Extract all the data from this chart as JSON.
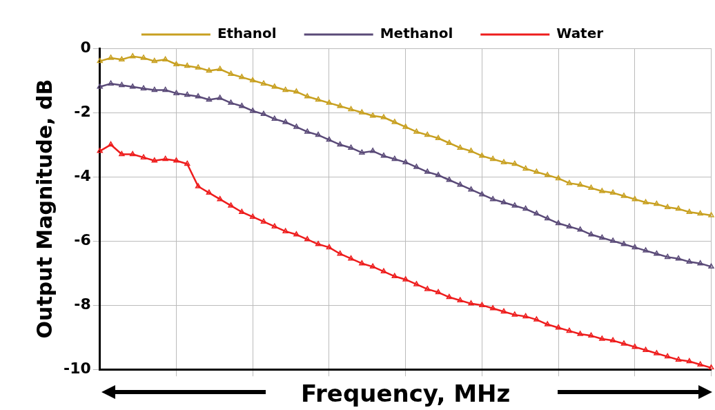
{
  "chart_data": {
    "type": "line",
    "xlabel": "Frequency, MHz",
    "ylabel": "Output Magnitude, dB",
    "categories": [
      null,
      null,
      null,
      null,
      null,
      null,
      null,
      null,
      null,
      null,
      null,
      null,
      null,
      null,
      null,
      null,
      null,
      null,
      null,
      null,
      null,
      null,
      null,
      null,
      null,
      null,
      null,
      null,
      null,
      null,
      null,
      null,
      null,
      null,
      null,
      null,
      null,
      null,
      null,
      null,
      null,
      null,
      null,
      null,
      null,
      null,
      null,
      null,
      null,
      null,
      null,
      null,
      null,
      null,
      null,
      null,
      null
    ],
    "series": [
      {
        "name": "Ethanol",
        "color": "#c8a020",
        "values": [
          -0.4,
          -0.3,
          -0.35,
          -0.25,
          -0.3,
          -0.4,
          -0.35,
          -0.5,
          -0.55,
          -0.6,
          -0.7,
          -0.65,
          -0.8,
          -0.9,
          -1.0,
          -1.1,
          -1.2,
          -1.3,
          -1.35,
          -1.5,
          -1.6,
          -1.7,
          -1.8,
          -1.9,
          -2.0,
          -2.1,
          -2.15,
          -2.3,
          -2.45,
          -2.6,
          -2.7,
          -2.8,
          -2.95,
          -3.1,
          -3.2,
          -3.35,
          -3.45,
          -3.55,
          -3.6,
          -3.75,
          -3.85,
          -3.95,
          -4.05,
          -4.2,
          -4.25,
          -4.35,
          -4.45,
          -4.5,
          -4.6,
          -4.7,
          -4.8,
          -4.85,
          -4.95,
          -5.0,
          -5.1,
          -5.15,
          -5.2
        ]
      },
      {
        "name": "Methanol",
        "color": "#5a4a78",
        "values": [
          -1.2,
          -1.1,
          -1.15,
          -1.2,
          -1.25,
          -1.3,
          -1.3,
          -1.4,
          -1.45,
          -1.5,
          -1.6,
          -1.55,
          -1.7,
          -1.8,
          -1.95,
          -2.05,
          -2.2,
          -2.3,
          -2.45,
          -2.6,
          -2.7,
          -2.85,
          -3.0,
          -3.1,
          -3.25,
          -3.2,
          -3.35,
          -3.45,
          -3.55,
          -3.7,
          -3.85,
          -3.95,
          -4.1,
          -4.25,
          -4.4,
          -4.55,
          -4.7,
          -4.8,
          -4.9,
          -5.0,
          -5.15,
          -5.3,
          -5.45,
          -5.55,
          -5.65,
          -5.8,
          -5.9,
          -6.0,
          -6.1,
          -6.2,
          -6.3,
          -6.4,
          -6.5,
          -6.55,
          -6.65,
          -6.7,
          -6.8
        ]
      },
      {
        "name": "Water",
        "color": "#ee1c1c",
        "values": [
          -3.2,
          -3.0,
          -3.3,
          -3.3,
          -3.4,
          -3.5,
          -3.45,
          -3.5,
          -3.6,
          -4.3,
          -4.5,
          -4.7,
          -4.9,
          -5.1,
          -5.25,
          -5.4,
          -5.55,
          -5.7,
          -5.8,
          -5.95,
          -6.1,
          -6.2,
          -6.4,
          -6.55,
          -6.7,
          -6.8,
          -6.95,
          -7.1,
          -7.2,
          -7.35,
          -7.5,
          -7.6,
          -7.75,
          -7.85,
          -7.95,
          -8.0,
          -8.1,
          -8.2,
          -8.3,
          -8.35,
          -8.45,
          -8.6,
          -8.7,
          -8.8,
          -8.9,
          -8.95,
          -9.05,
          -9.1,
          -9.2,
          -9.3,
          -9.4,
          -9.5,
          -9.6,
          -9.7,
          -9.75,
          -9.85,
          -9.95
        ]
      }
    ],
    "ylim": [
      -10,
      0
    ],
    "yticks": [
      -10,
      -8,
      -6,
      -4,
      -2,
      0
    ],
    "grid": true,
    "legend": "top",
    "tick_labels": "y",
    "marker": "triangle",
    "line_style": "solid"
  }
}
